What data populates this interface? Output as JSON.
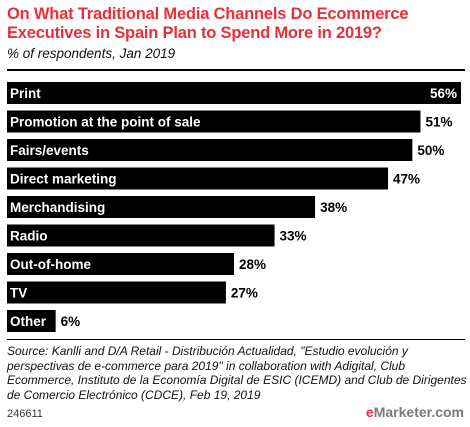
{
  "header": {
    "title": "On What Traditional Media Channels Do Ecommerce Executives in Spain Plan to Spend More in 2019?",
    "subtitle": "% of respondents, Jan 2019"
  },
  "chart_data": {
    "type": "bar",
    "orientation": "horizontal",
    "title": "On What Traditional Media Channels Do Ecommerce Executives in Spain Plan to Spend More in 2019?",
    "subtitle": "% of respondents, Jan 2019",
    "categories": [
      "Print",
      "Promotion at the point of sale",
      "Fairs/events",
      "Direct marketing",
      "Merchandising",
      "Radio",
      "Out-of-home",
      "TV",
      "Other"
    ],
    "values": [
      56,
      51,
      50,
      47,
      38,
      33,
      28,
      27,
      6
    ],
    "value_labels": [
      "56%",
      "51%",
      "50%",
      "47%",
      "38%",
      "33%",
      "28%",
      "27%",
      "6%"
    ],
    "xlim": [
      0,
      56
    ],
    "grid": false,
    "bar_color": "#000000"
  },
  "footer": {
    "source": "Source: Kanlli and D/A Retail - Distribución Actualidad, \"Estudio evolución y perspectivas de e-commerce para 2019\" in collaboration with Adigital, Club Ecommerce, Instituto de la Economía Digital de ESIC (ICEMD) and Club de Dirigentes de Comercio Electrónico (CDCE), Feb 19, 2019",
    "chart_id": "246611",
    "brand_prefix": "e",
    "brand_name": "Marketer",
    "brand_suffix": ".com"
  },
  "colors": {
    "title": "#e8303a",
    "bars": "#000000",
    "brand_accent": "#e8303a"
  }
}
